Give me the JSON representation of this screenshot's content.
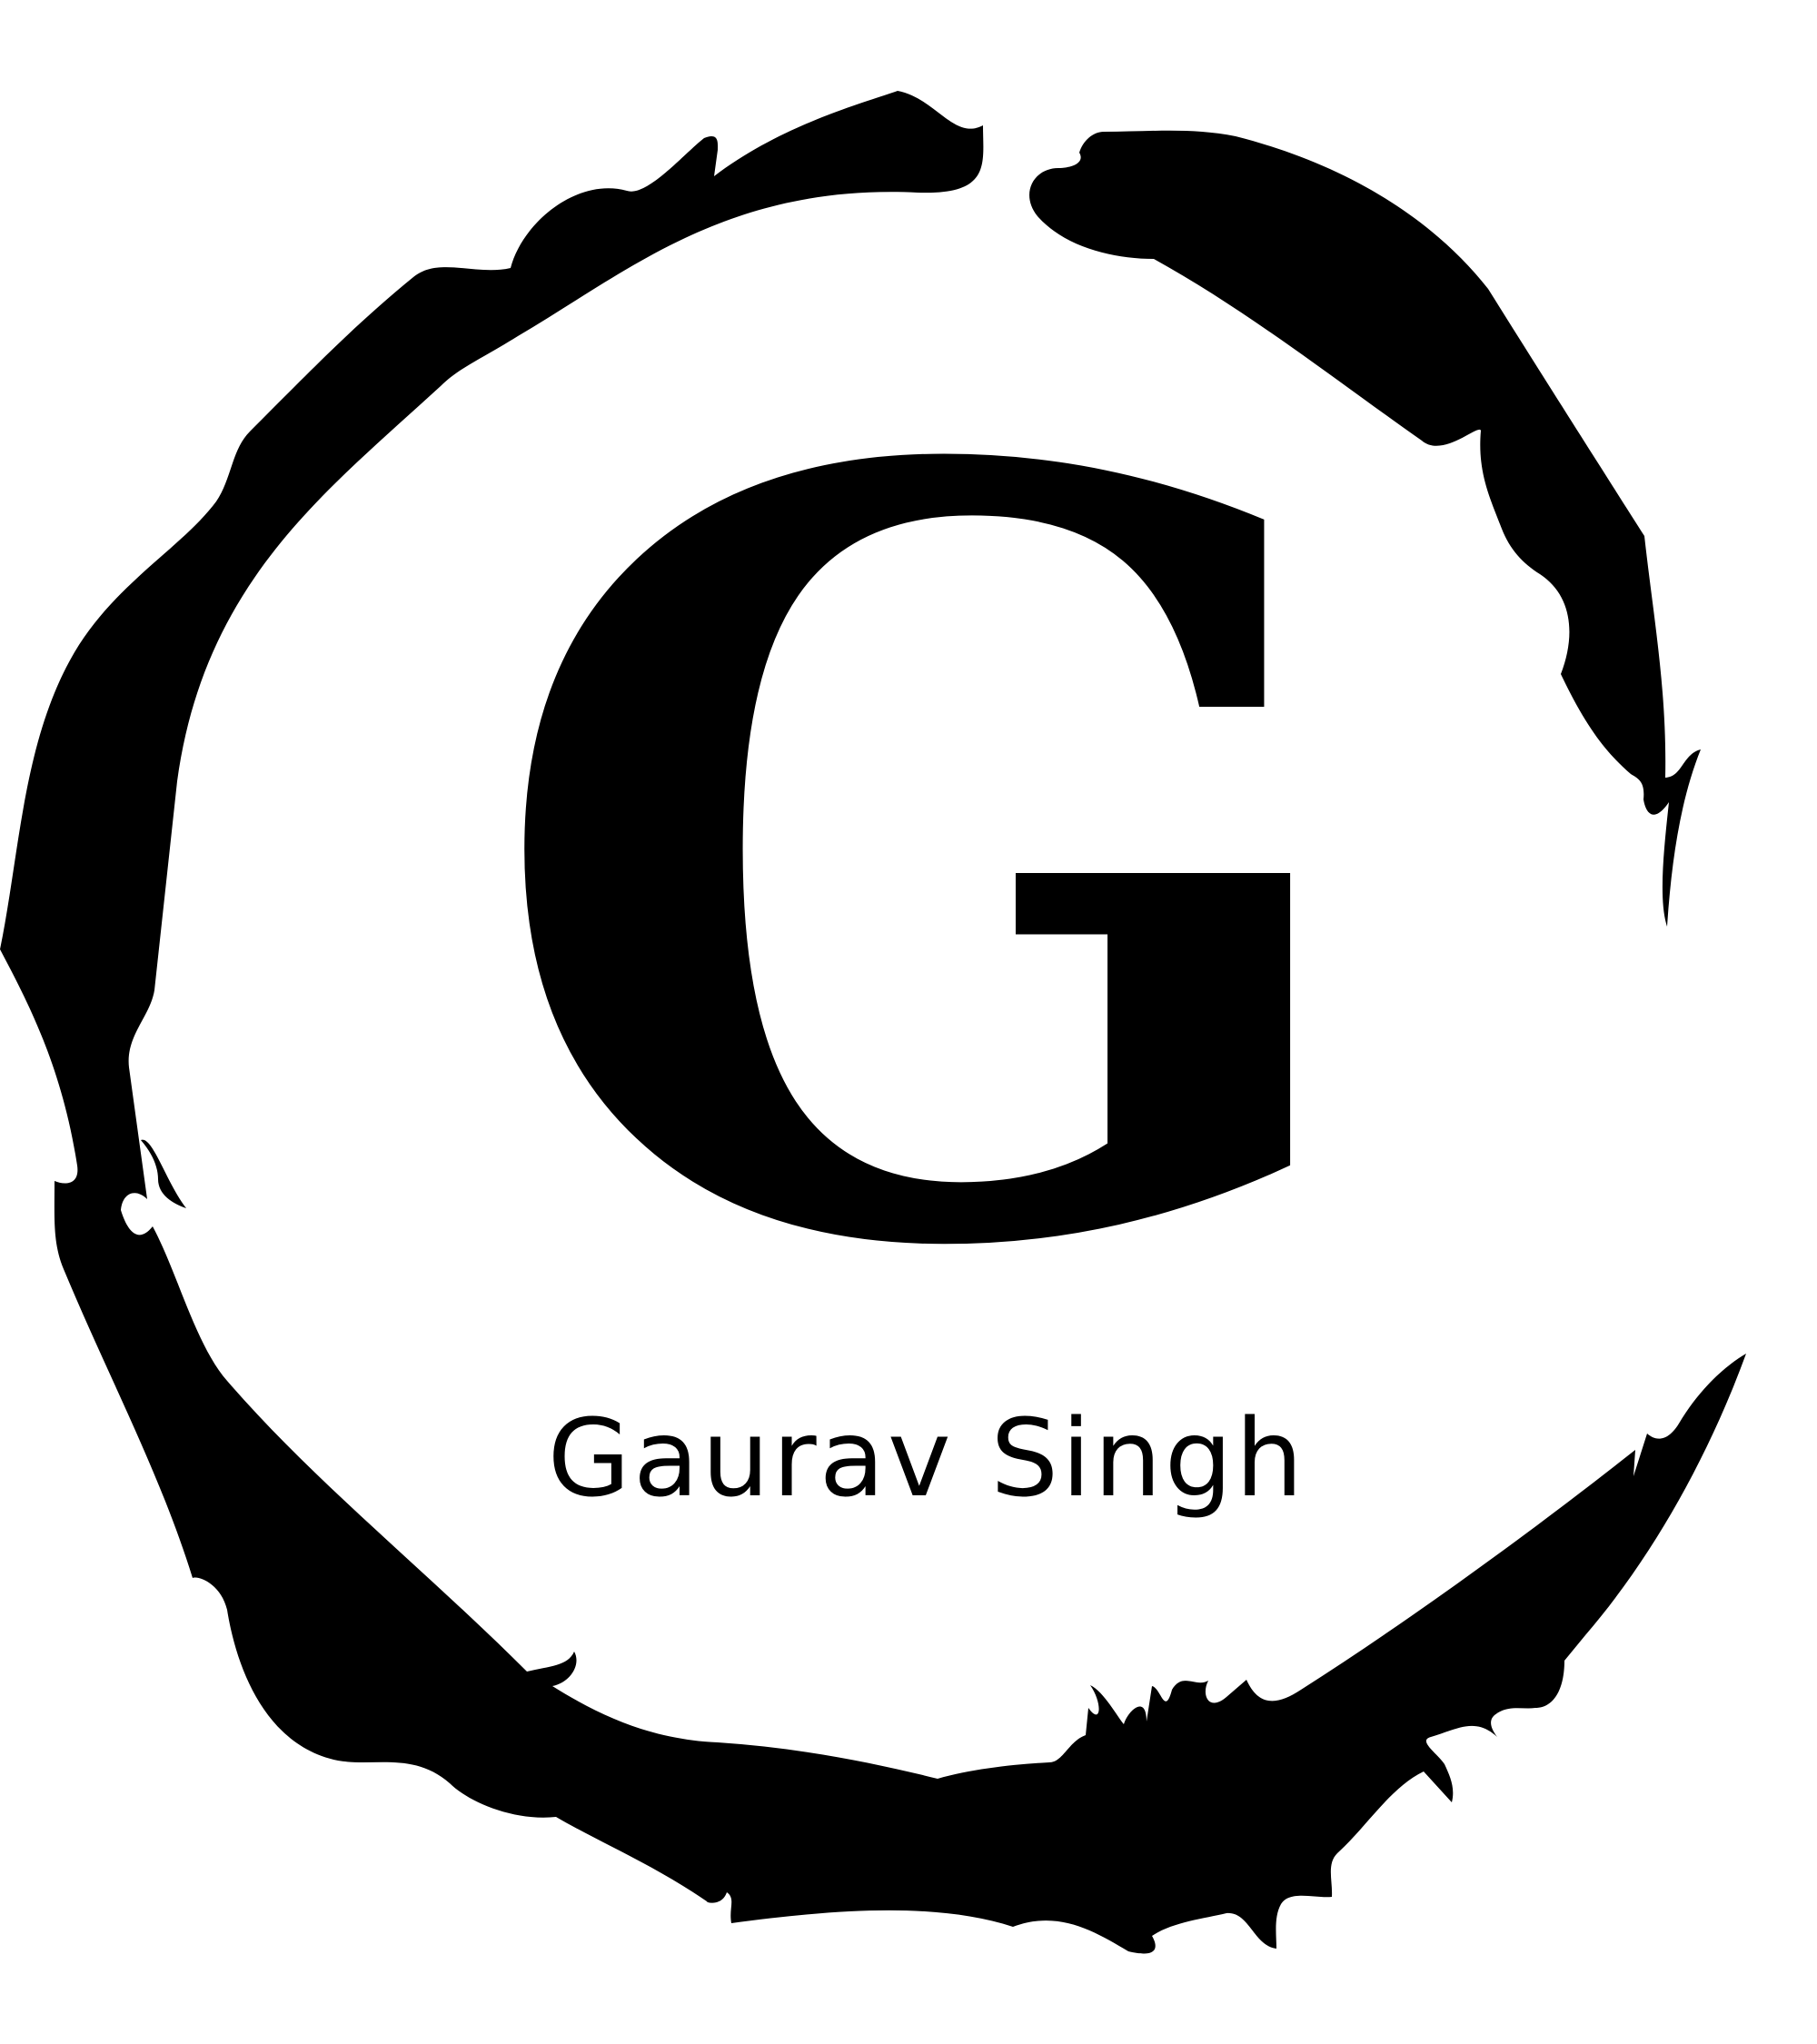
{
  "logo": {
    "monogram": "G",
    "name": "Gaurav Singh",
    "ink_color": "#000000",
    "background_color": "#ffffff",
    "ring_icon": "brush-stroke-circle-icon"
  }
}
